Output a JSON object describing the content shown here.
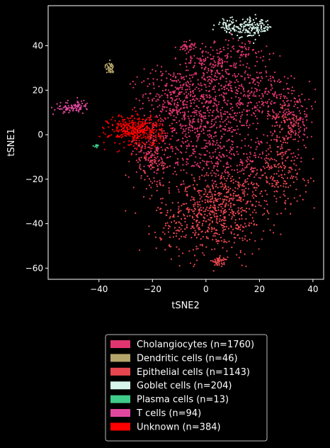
{
  "chart_data": {
    "type": "scatter",
    "xlabel": "tSNE2",
    "ylabel": "tSNE1",
    "xlim": [
      -59,
      44
    ],
    "ylim": [
      -65,
      58
    ],
    "xticks": [
      -40,
      -20,
      0,
      20,
      40
    ],
    "yticks": [
      -60,
      -40,
      -20,
      0,
      20,
      40
    ],
    "xtick_labels": [
      "−40",
      "−20",
      "0",
      "20",
      "40"
    ],
    "ytick_labels": [
      "−60",
      "−40",
      "−20",
      "0",
      "20",
      "40"
    ],
    "grid": false,
    "legend_position": "below",
    "background": "#000000",
    "series": [
      {
        "name": "Cholangiocytes (n=1760)",
        "color": "#e0356f",
        "clusters": [
          {
            "cx": 0,
            "cy": 8,
            "sx": 11,
            "sy": 13,
            "weight": 0.45
          },
          {
            "cx": -12,
            "cy": 18,
            "sx": 6,
            "sy": 6,
            "weight": 0.1
          },
          {
            "cx": 20,
            "cy": 18,
            "sx": 8,
            "sy": 6,
            "weight": 0.1
          },
          {
            "cx": 33,
            "cy": 8,
            "sx": 4,
            "sy": 8,
            "weight": 0.08
          },
          {
            "cx": 2,
            "cy": 32,
            "sx": 6,
            "sy": 4,
            "weight": 0.08
          },
          {
            "cx": -20,
            "cy": -8,
            "sx": 3,
            "sy": 6,
            "weight": 0.06
          },
          {
            "cx": 10,
            "cy": -12,
            "sx": 10,
            "sy": 5,
            "weight": 0.08
          },
          {
            "cx": -7,
            "cy": 40,
            "sx": 1.5,
            "sy": 1,
            "weight": 0.02
          },
          {
            "cx": 15,
            "cy": 38,
            "sx": 5,
            "sy": 3,
            "weight": 0.03
          }
        ]
      },
      {
        "name": "Dendritic cells (n=46)",
        "color": "#b4a56a",
        "clusters": [
          {
            "cx": -36,
            "cy": 30,
            "sx": 0.8,
            "sy": 1.2,
            "weight": 1
          }
        ]
      },
      {
        "name": "Epithelial cells (n=1143)",
        "color": "#e8464e",
        "clusters": [
          {
            "cx": 2,
            "cy": -38,
            "sx": 10,
            "sy": 8,
            "weight": 0.45
          },
          {
            "cx": 10,
            "cy": -25,
            "sx": 12,
            "sy": 6,
            "weight": 0.25
          },
          {
            "cx": 28,
            "cy": -15,
            "sx": 5,
            "sy": 8,
            "weight": 0.12
          },
          {
            "cx": 5,
            "cy": -57,
            "sx": 1.5,
            "sy": 1,
            "weight": 0.04
          },
          {
            "cx": -20,
            "cy": -12,
            "sx": 4,
            "sy": 6,
            "weight": 0.08
          },
          {
            "cx": 30,
            "cy": 5,
            "sx": 3,
            "sy": 6,
            "weight": 0.06
          }
        ]
      },
      {
        "name": "Goblet cells (n=204)",
        "color": "#d8f5ec",
        "clusters": [
          {
            "cx": 17,
            "cy": 48,
            "sx": 4,
            "sy": 2,
            "weight": 0.8
          },
          {
            "cx": 8,
            "cy": 49,
            "sx": 2,
            "sy": 1.5,
            "weight": 0.2
          }
        ]
      },
      {
        "name": "Plasma cells (n=13)",
        "color": "#3fcc8a",
        "clusters": [
          {
            "cx": -41,
            "cy": -5,
            "sx": 0.5,
            "sy": 0.3,
            "weight": 1
          }
        ]
      },
      {
        "name": "T cells (n=94)",
        "color": "#e048a0",
        "clusters": [
          {
            "cx": -51,
            "cy": 12,
            "sx": 2.5,
            "sy": 1.2,
            "weight": 0.7
          },
          {
            "cx": -47,
            "cy": 13,
            "sx": 1.2,
            "sy": 1.2,
            "weight": 0.3
          }
        ]
      },
      {
        "name": "Unknown (n=384)",
        "color": "#ff0000",
        "clusters": [
          {
            "cx": -26,
            "cy": 2,
            "sx": 5,
            "sy": 3.5,
            "weight": 1
          }
        ]
      }
    ]
  }
}
